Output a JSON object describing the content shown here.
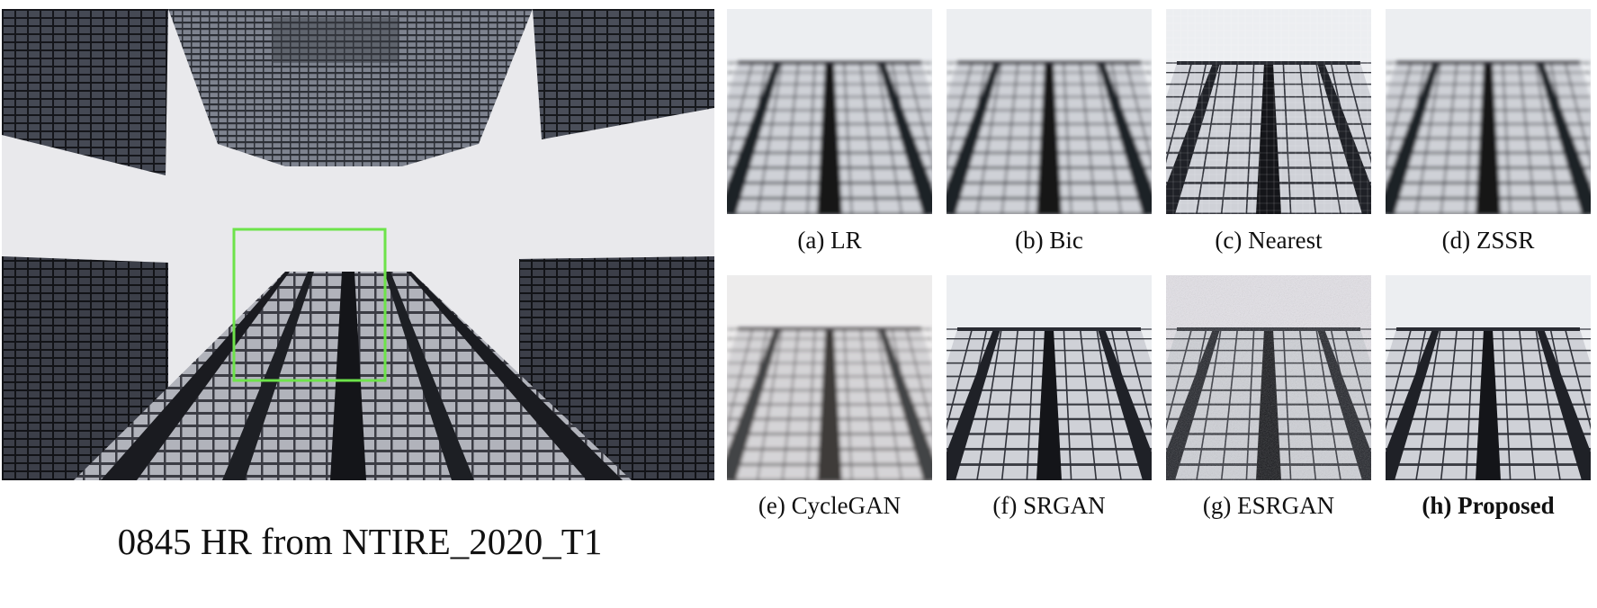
{
  "figure": {
    "main_caption": "0845 HR from NTIRE_2020_T1",
    "highlight_color": "#6de34a",
    "panels": [
      {
        "label": "(a) LR",
        "style": "blurry"
      },
      {
        "label": "(b) Bic",
        "style": "blurry"
      },
      {
        "label": "(c) Nearest",
        "style": "pixelated"
      },
      {
        "label": "(d) ZSSR",
        "style": "blurry"
      },
      {
        "label": "(e) CycleGAN",
        "style": "blurry-warm"
      },
      {
        "label": "(f) SRGAN",
        "style": "sharp"
      },
      {
        "label": "(g) ESRGAN",
        "style": "noisy"
      },
      {
        "label": "(h) Proposed",
        "style": "sharp",
        "emphasis": "bold"
      }
    ]
  }
}
